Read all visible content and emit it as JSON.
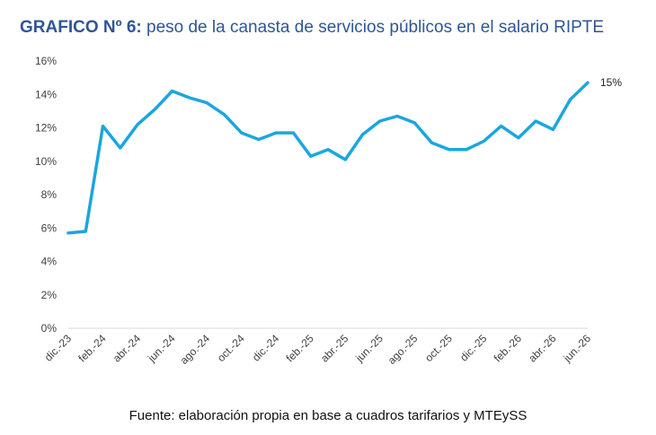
{
  "header": {
    "title_bold": "GRAFICO Nº 6:",
    "title_rest": " peso de la canasta de servicios públicos en el salario RIPTE"
  },
  "footer": {
    "source": "Fuente: elaboración propia en base a cuadros tarifarios y MTEySS"
  },
  "colors": {
    "line": "#1ba6df",
    "title": "#2f5597",
    "axis": "#d9d9d9"
  },
  "chart_data": {
    "type": "line",
    "title": "GRAFICO Nº 6: peso de la canasta de servicios públicos en el salario RIPTE",
    "xlabel": "",
    "ylabel": "",
    "ylim": [
      0,
      0.16
    ],
    "yticks": [
      "0%",
      "2%",
      "4%",
      "6%",
      "8%",
      "10%",
      "12%",
      "14%",
      "16%"
    ],
    "grid": false,
    "legend": "none",
    "x": [
      "dic.-23",
      "ene.-24",
      "feb.-24",
      "mar.-24",
      "abr.-24",
      "may.-24",
      "jun.-24",
      "jul.-24",
      "ago.-24",
      "sep.-24",
      "oct.-24",
      "nov.-24",
      "dic.-24",
      "ene.-25",
      "feb.-25",
      "mar.-25",
      "abr.-25",
      "may.-25",
      "jun.-25",
      "jul.-25",
      "ago.-25",
      "sep.-25",
      "oct.-25",
      "nov.-25",
      "dic.-25",
      "ene.-26",
      "feb.-26",
      "mar.-26",
      "abr.-26",
      "may.-26",
      "jun.-26"
    ],
    "x_tick_labels": [
      "dic.-23",
      "feb.-24",
      "abr.-24",
      "jun.-24",
      "ago.-24",
      "oct.-24",
      "dic.-24",
      "feb.-25",
      "abr.-25",
      "jun.-25",
      "ago.-25",
      "oct.-25",
      "dic.-25",
      "feb.-26",
      "abr.-26",
      "jun.-26"
    ],
    "series": [
      {
        "values": [
          0.057,
          0.058,
          0.121,
          0.108,
          0.122,
          0.131,
          0.142,
          0.138,
          0.135,
          0.128,
          0.117,
          0.113,
          0.117,
          0.117,
          0.103,
          0.107,
          0.101,
          0.116,
          0.124,
          0.127,
          0.123,
          0.111,
          0.107,
          0.107,
          0.112,
          0.121,
          0.114,
          0.124,
          0.119,
          0.137,
          0.147
        ]
      }
    ],
    "end_label": "15%"
  }
}
